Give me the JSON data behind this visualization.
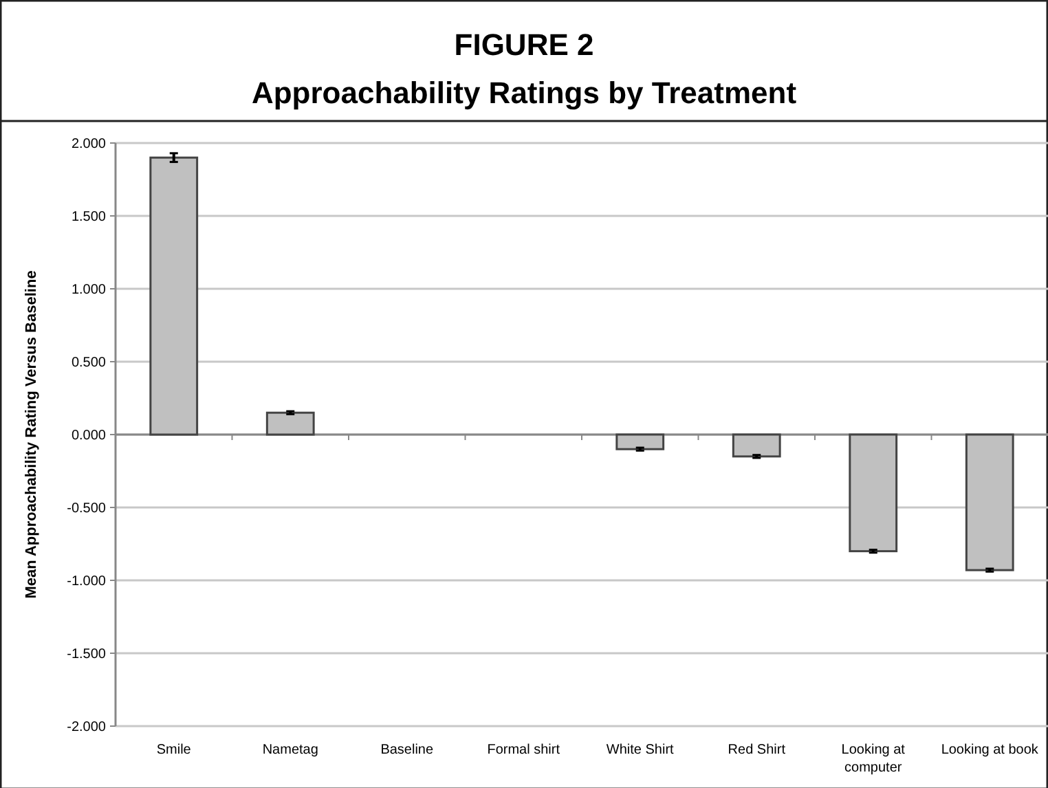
{
  "chart_data": {
    "type": "bar",
    "title": "FIGURE 2",
    "subtitle": "Approachability Ratings by Treatment",
    "ylabel": "Mean Approachability Rating Versus Baseline",
    "categories": [
      "Smile",
      "Nametag",
      "Baseline",
      "Formal shirt",
      "White Shirt",
      "Red Shirt",
      "Looking at computer",
      "Looking at book"
    ],
    "values": [
      1.9,
      0.15,
      0,
      0,
      -0.1,
      -0.15,
      -0.8,
      -0.93
    ],
    "errors": [
      0.03,
      0.01,
      null,
      null,
      0.01,
      0.01,
      0.01,
      0.01
    ],
    "color": "#c0c0c0",
    "ylim": [
      -2,
      2
    ],
    "yticks": [
      {
        "value": -2,
        "label": "-2.000"
      },
      {
        "value": -1.5,
        "label": "-1.500"
      },
      {
        "value": -1,
        "label": "-1.000"
      },
      {
        "value": -0.5,
        "label": "-0.500"
      },
      {
        "value": 0,
        "label": "0.000"
      },
      {
        "value": 0.5,
        "label": "0.500"
      },
      {
        "value": 1,
        "label": "1.000"
      },
      {
        "value": 1.5,
        "label": "1.500"
      },
      {
        "value": 2,
        "label": "2.000"
      }
    ],
    "grid": "y"
  }
}
